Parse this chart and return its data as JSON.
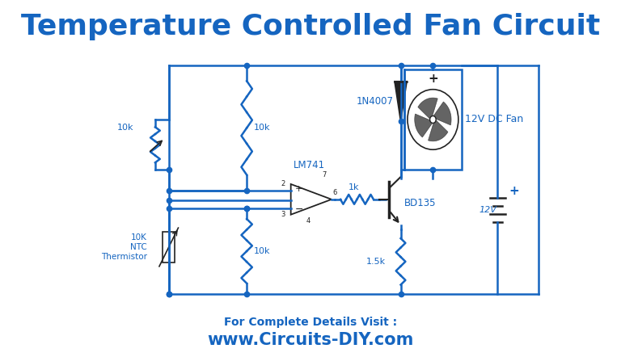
{
  "title": "Temperature Controlled Fan Circuit",
  "title_color": "#1565c0",
  "title_fontsize": 26,
  "circuit_color": "#1565c0",
  "line_width": 1.8,
  "background_color": "#ffffff",
  "footer_line1": "For Complete Details Visit :",
  "footer_line2": "www.Circuits-DIY.com",
  "footer_color": "#1565c0",
  "thermistor_label": "10K\nNTC\nThermistor"
}
